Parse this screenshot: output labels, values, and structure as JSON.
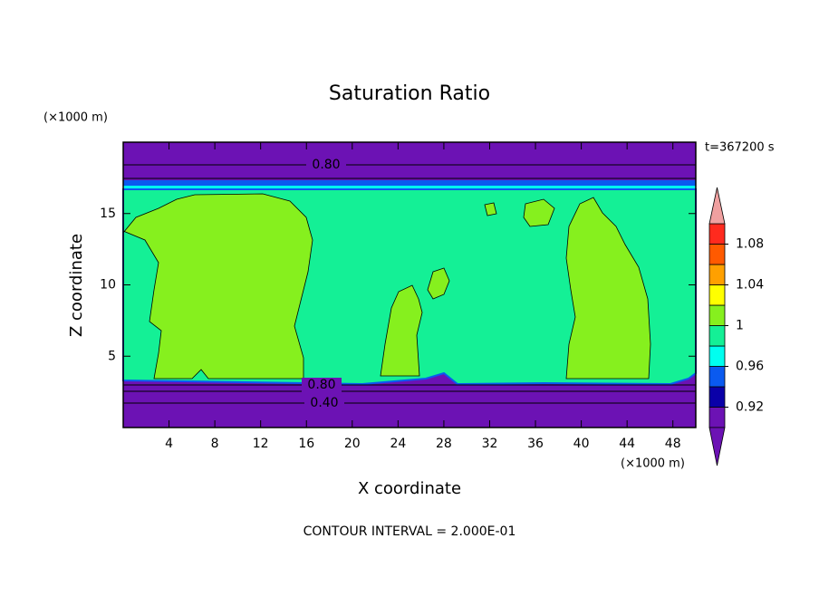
{
  "chart_data": {
    "type": "contour",
    "title": "Saturation Ratio",
    "x_label": "X coordinate",
    "y_label": "Z coordinate",
    "x_units": "(×1000 m)",
    "y_units": "(×1000 m)",
    "time_label": "t=367200 s",
    "footer": "CONTOUR INTERVAL = 2.000E-01",
    "xlim": [
      0,
      50
    ],
    "xticks": [
      4,
      8,
      12,
      16,
      20,
      24,
      28,
      32,
      36,
      40,
      44,
      48
    ],
    "ylim": [
      0,
      20
    ],
    "yticks": [
      5,
      10,
      15
    ],
    "contour_labels": [
      {
        "value": 0.8,
        "label": "0.80"
      },
      {
        "value": 0.8,
        "label": "0.80"
      },
      {
        "value": 0.4,
        "label": "0.40"
      }
    ],
    "colorbar": {
      "bounds": [
        0.9,
        0.92,
        0.94,
        0.96,
        0.98,
        1,
        1.02,
        1.04,
        1.06,
        1.08,
        1.1
      ],
      "colors": [
        "#6c12b4",
        "#0a00a8",
        "#0a5af0",
        "#00fff0",
        "#14f096",
        "#86f01e",
        "#ffff00",
        "#ffa000",
        "#ff5a00",
        "#ff2a1e"
      ],
      "under_color": "#6c12b4",
      "over_color": "#f0a0a0",
      "ticks": [
        0.92,
        0.96,
        1,
        1.04,
        1.08
      ]
    }
  }
}
